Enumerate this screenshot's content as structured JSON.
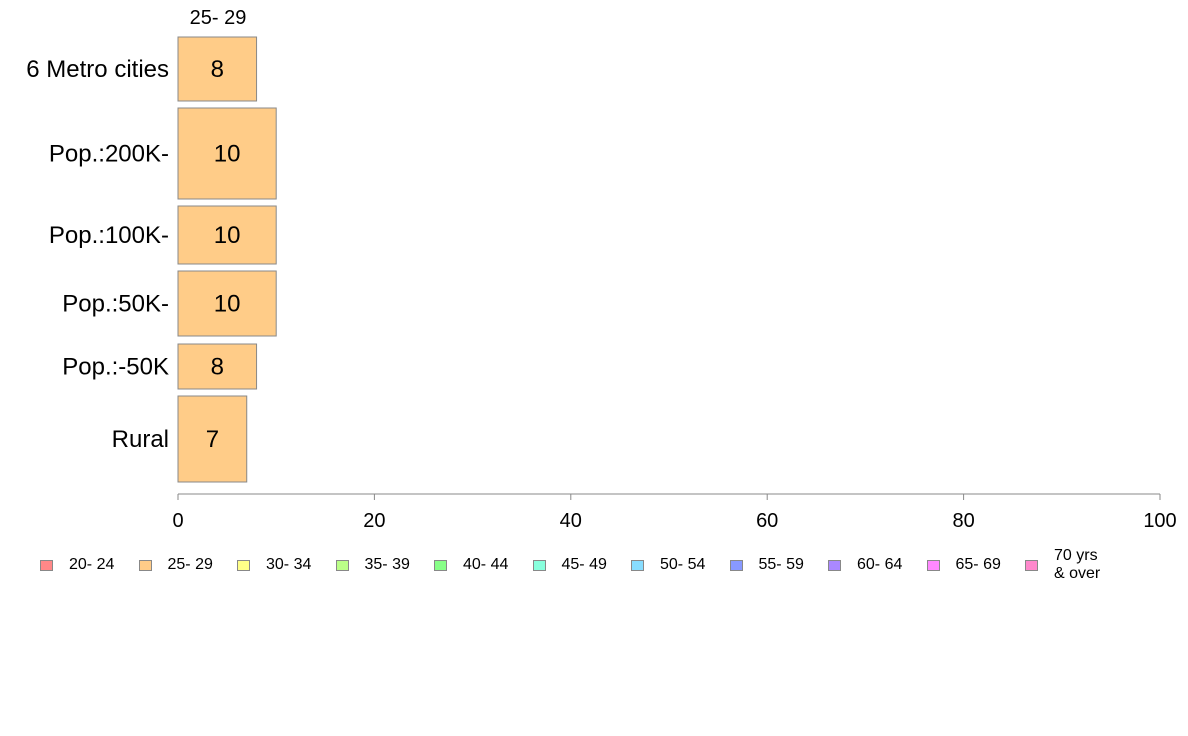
{
  "chart_data": {
    "type": "bar",
    "orientation": "horizontal",
    "series_header": "25- 29",
    "categories": [
      "6 Metro cities",
      "Pop.:200K-",
      "Pop.:100K-",
      "Pop.:50K-",
      "Pop.:-50K",
      "Rural"
    ],
    "values": [
      8,
      10,
      10,
      10,
      8,
      7
    ],
    "xlim": [
      0,
      100
    ],
    "xticks": [
      0,
      20,
      40,
      60,
      80,
      100
    ],
    "xtick_labels": [
      "0",
      "20",
      "40",
      "60",
      "80",
      "100"
    ],
    "bar_color": "#ffcc88",
    "legend_position": "bottom",
    "legend": [
      {
        "label": "20- 24",
        "color": "#ff8888"
      },
      {
        "label": "25- 29",
        "color": "#ffcc88"
      },
      {
        "label": "30- 34",
        "color": "#ffff88"
      },
      {
        "label": "35- 39",
        "color": "#bbff88"
      },
      {
        "label": "40- 44",
        "color": "#88ff88"
      },
      {
        "label": "45- 49",
        "color": "#88ffdd"
      },
      {
        "label": "50- 54",
        "color": "#88ddff"
      },
      {
        "label": "55- 59",
        "color": "#8899ff"
      },
      {
        "label": "60- 64",
        "color": "#aa88ff"
      },
      {
        "label": "65- 69",
        "color": "#ff88ff"
      },
      {
        "label": "70 yrs\n& over",
        "color": "#ff88cc"
      }
    ]
  }
}
